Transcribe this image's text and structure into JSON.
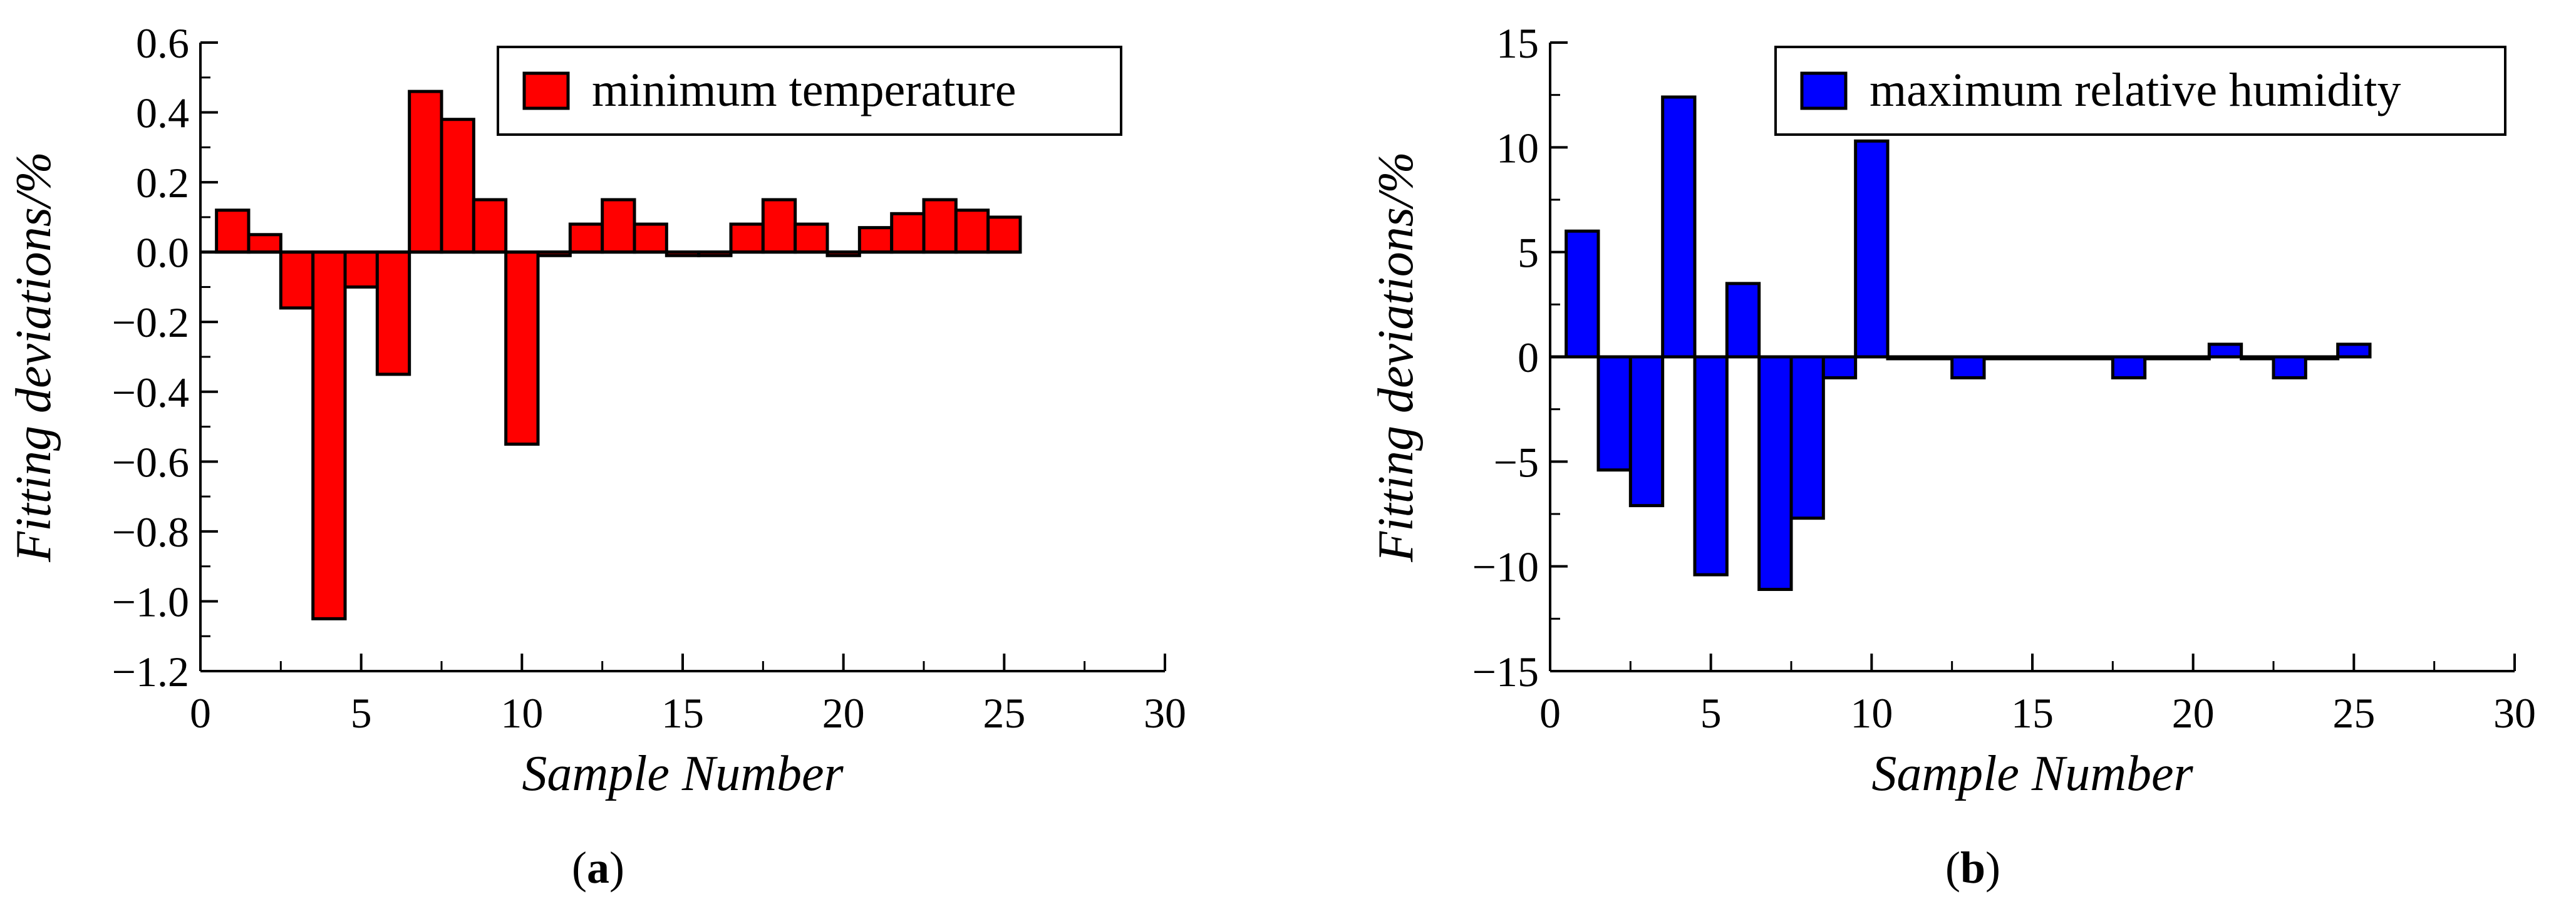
{
  "chart_data": [
    {
      "type": "bar",
      "panel": "a",
      "xlabel": "Sample Number",
      "ylabel": "Fitting deviations/%",
      "xlim": [
        0,
        30
      ],
      "ylim": [
        -1.2,
        0.6
      ],
      "xticks": [
        0,
        5,
        10,
        15,
        20,
        25,
        30
      ],
      "xtick_labels": [
        "0",
        "5",
        "10",
        "15",
        "20",
        "25",
        "30"
      ],
      "yticks": [
        -1.2,
        -1.0,
        -0.8,
        -0.6,
        -0.4,
        -0.2,
        0.0,
        0.2,
        0.4,
        0.6
      ],
      "ytick_labels": [
        "−1.2",
        "−1.0",
        "−0.8",
        "−0.6",
        "−0.4",
        "−0.2",
        "0.0",
        "0.2",
        "0.4",
        "0.6"
      ],
      "legend_position": "top-right",
      "series": [
        {
          "name": "minimum temperature",
          "color": "#ff0000",
          "x": [
            1,
            2,
            3,
            4,
            5,
            6,
            7,
            8,
            9,
            10,
            11,
            12,
            13,
            14,
            15,
            16,
            17,
            18,
            19,
            20,
            21,
            22,
            23,
            24,
            25
          ],
          "values": [
            0.12,
            0.05,
            -0.16,
            -1.05,
            -0.1,
            -0.35,
            0.46,
            0.38,
            0.15,
            -0.55,
            -0.01,
            0.08,
            0.15,
            0.08,
            -0.01,
            -0.01,
            0.08,
            0.15,
            0.08,
            -0.01,
            0.07,
            0.11,
            0.15,
            0.12,
            0.1
          ]
        }
      ],
      "caption_label": "a"
    },
    {
      "type": "bar",
      "panel": "b",
      "xlabel": "Sample Number",
      "ylabel": "Fitting deviations/%",
      "xlim": [
        0,
        30
      ],
      "ylim": [
        -15,
        15
      ],
      "xticks": [
        0,
        5,
        10,
        15,
        20,
        25,
        30
      ],
      "xtick_labels": [
        "0",
        "5",
        "10",
        "15",
        "20",
        "25",
        "30"
      ],
      "yticks": [
        -15,
        -10,
        -5,
        0,
        5,
        10,
        15
      ],
      "ytick_labels": [
        "−15",
        "−10",
        "−5",
        "0",
        "5",
        "10",
        "15"
      ],
      "legend_position": "top-right",
      "series": [
        {
          "name": "maximum relative humidity",
          "color": "#0000ff",
          "x": [
            1,
            2,
            3,
            4,
            5,
            6,
            7,
            8,
            9,
            10,
            11,
            12,
            13,
            14,
            15,
            16,
            17,
            18,
            19,
            20,
            21,
            22,
            23,
            24,
            25
          ],
          "values": [
            6,
            -5.4,
            -7.1,
            12.4,
            -10.4,
            3.5,
            -11.1,
            -7.7,
            -1,
            10.3,
            0,
            0,
            -1,
            0,
            0,
            0,
            0,
            -1,
            0,
            0,
            0.6,
            0,
            -1,
            0,
            0.6
          ]
        }
      ],
      "caption_label": "b"
    }
  ]
}
